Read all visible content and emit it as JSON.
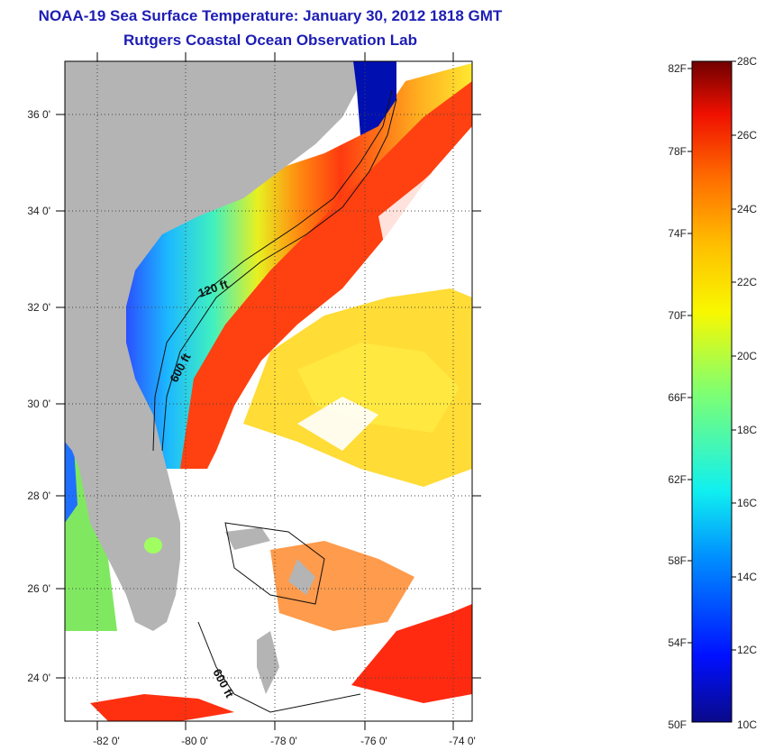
{
  "title": "NOAA-19 Sea Surface Temperature:  January 30, 2012 1818 GMT",
  "subtitle": "Rutgers Coastal Ocean Observation Lab",
  "map": {
    "lat_labels": [
      "36 0'",
      "34 0'",
      "32 0'",
      "30 0'",
      "28 0'",
      "26 0'",
      "24 0'"
    ],
    "lon_labels": [
      "-82 0'",
      "-80 0'",
      "-78 0'",
      "-76 0'",
      "-74 0'"
    ],
    "contours": [
      {
        "label": "120 ft"
      },
      {
        "label": "600 ft"
      },
      {
        "label": "600 ft"
      }
    ],
    "colors": {
      "land": "#b4b4b4",
      "cloud": "#ffffff",
      "gulfstream": "#ff3a10",
      "shelf": "#1f6aff"
    }
  },
  "colorbar": {
    "f_labels": [
      "82F",
      "78F",
      "74F",
      "70F",
      "66F",
      "62F",
      "58F",
      "54F",
      "50F"
    ],
    "c_labels": [
      "28C",
      "26C",
      "24C",
      "22C",
      "20C",
      "18C",
      "16C",
      "14C",
      "12C",
      "10C"
    ]
  }
}
